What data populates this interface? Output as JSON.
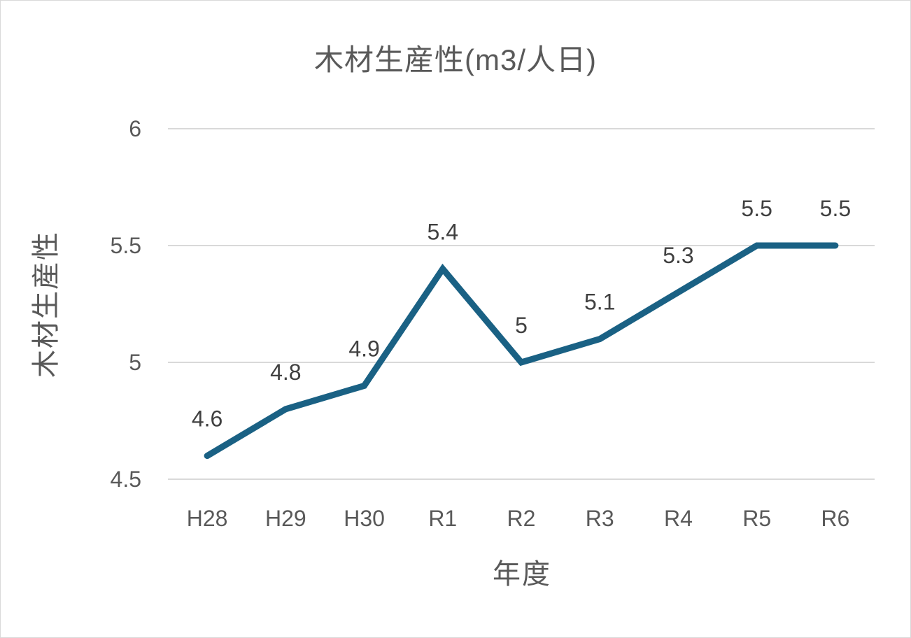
{
  "chart_data": {
    "type": "line",
    "title": "木材生産性(m3/人日)",
    "xlabel": "年度",
    "ylabel": "木材生産性",
    "categories": [
      "H28",
      "H29",
      "H30",
      "R1",
      "R2",
      "R3",
      "R4",
      "R5",
      "R6"
    ],
    "series": [
      {
        "name": "木材生産性",
        "values": [
          4.6,
          4.8,
          4.9,
          5.4,
          5.0,
          5.1,
          5.3,
          5.5,
          5.5
        ],
        "data_labels": [
          "4.6",
          "4.8",
          "4.9",
          "5.4",
          "5",
          "5.1",
          "5.3",
          "5.5",
          "5.5"
        ],
        "color": "#1a6184"
      }
    ],
    "ylim": [
      4.5,
      6
    ],
    "yticks": [
      "4.5",
      "5",
      "5.5",
      "6"
    ],
    "grid": true,
    "legend": "none"
  },
  "colors": {
    "line": "#1a6184",
    "grid": "#d9d9d9",
    "text": "#595959",
    "label": "#404040"
  }
}
